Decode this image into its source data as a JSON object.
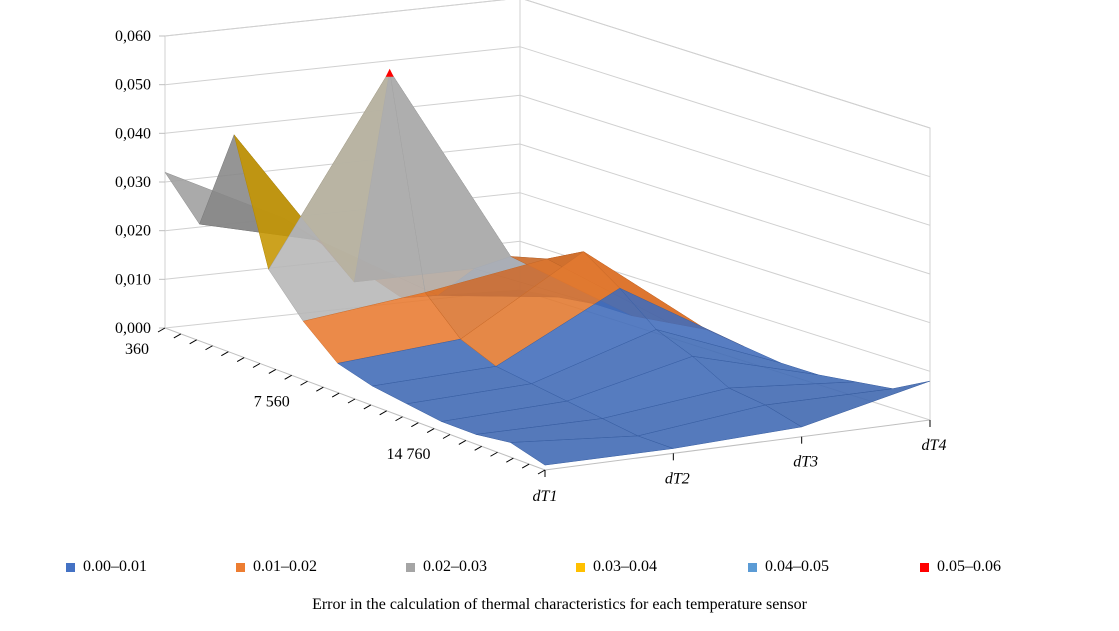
{
  "chart_data": {
    "type": "surface",
    "title": "",
    "caption": "Error in the calculation of thermal characteristics for each temperature sensor",
    "z_axis": {
      "min": 0.0,
      "max": 0.06,
      "step": 0.01,
      "tick_labels": [
        "0,000",
        "0,010",
        "0,020",
        "0,030",
        "0,040",
        "0,050",
        "0,060"
      ]
    },
    "depth_axis": {
      "tick_labels": [
        "360",
        "7 560",
        "14 760"
      ],
      "tick_values": [
        360,
        7560,
        14760
      ],
      "range": [
        360,
        19800
      ]
    },
    "category_axis": {
      "categories": [
        "dT1",
        "dT2",
        "dT3",
        "dT4"
      ]
    },
    "legend": {
      "position": "bottom",
      "items": [
        {
          "label": "0.00–0.01",
          "color": "#4472C4"
        },
        {
          "label": "0.01–0.02",
          "color": "#ED7D31"
        },
        {
          "label": "0.02–0.03",
          "color": "#A5A5A5"
        },
        {
          "label": "0.03–0.04",
          "color": "#FFC000"
        },
        {
          "label": "0.04–0.05",
          "color": "#5B9BD5"
        },
        {
          "label": "0.05–0.06",
          "color": "#FF0000"
        }
      ]
    },
    "series": [
      {
        "name": "dT1",
        "values": [
          0.032,
          0.024,
          0.045,
          0.02,
          0.012,
          0.006,
          0.004,
          0.003,
          0.002,
          0.002,
          0.003,
          0.001
        ]
      },
      {
        "name": "dT2",
        "values": [
          0.02,
          0.018,
          0.012,
          0.058,
          0.015,
          0.008,
          0.005,
          0.004,
          0.003,
          0.002,
          0.001,
          0.001
        ]
      },
      {
        "name": "dT3",
        "values": [
          0.001,
          0.004,
          0.012,
          0.017,
          0.019,
          0.023,
          0.018,
          0.012,
          0.009,
          0.005,
          0.004,
          0.002
        ]
      },
      {
        "name": "dT4",
        "values": [
          0.0,
          0.001,
          0.002,
          0.002,
          0.003,
          0.004,
          0.003,
          0.002,
          0.002,
          0.003,
          0.004,
          0.008
        ]
      }
    ],
    "grid": true
  }
}
